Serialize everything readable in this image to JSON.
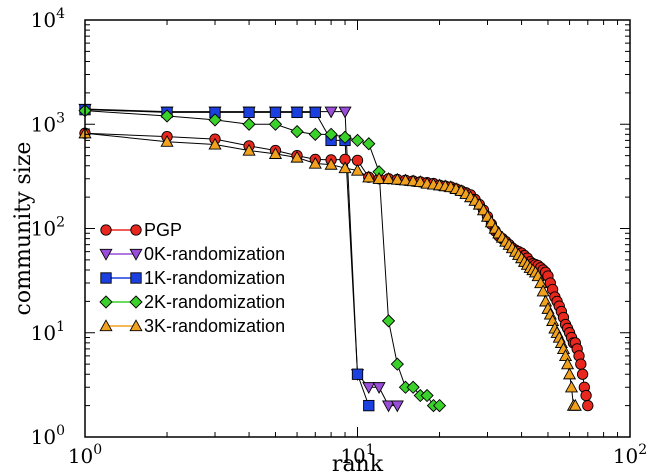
{
  "chart_data": {
    "type": "scatter",
    "xlabel": "rank",
    "ylabel": "community size",
    "xscale": "log",
    "yscale": "log",
    "xlim": [
      1,
      100
    ],
    "ylim": [
      1,
      10000
    ],
    "x_ticks": [
      {
        "value": 1,
        "base": "10",
        "exp": "0"
      },
      {
        "value": 10,
        "base": "10",
        "exp": "1"
      },
      {
        "value": 100,
        "base": "10",
        "exp": "2"
      }
    ],
    "y_ticks": [
      {
        "value": 1,
        "base": "10",
        "exp": "0"
      },
      {
        "value": 10,
        "base": "10",
        "exp": "1"
      },
      {
        "value": 100,
        "base": "10",
        "exp": "2"
      },
      {
        "value": 1000,
        "base": "10",
        "exp": "3"
      },
      {
        "value": 10000,
        "base": "10",
        "exp": "4"
      }
    ],
    "grid": false,
    "legend_position": "left",
    "series": [
      {
        "name": "PGP",
        "marker": "circle",
        "color": "#e8281e",
        "points": [
          [
            1,
            820
          ],
          [
            2,
            760
          ],
          [
            3,
            720
          ],
          [
            4,
            620
          ],
          [
            5,
            560
          ],
          [
            6,
            500
          ],
          [
            7,
            460
          ],
          [
            8,
            455
          ],
          [
            9,
            460
          ],
          [
            10,
            450
          ],
          [
            11,
            310
          ],
          [
            12,
            300
          ],
          [
            13,
            300
          ],
          [
            14,
            295
          ],
          [
            15,
            290
          ],
          [
            16,
            285
          ],
          [
            17,
            280
          ],
          [
            18,
            275
          ],
          [
            19,
            270
          ],
          [
            20,
            260
          ],
          [
            21,
            255
          ],
          [
            22,
            250
          ],
          [
            23,
            240
          ],
          [
            24,
            230
          ],
          [
            25,
            220
          ],
          [
            26,
            210
          ],
          [
            27,
            190
          ],
          [
            28,
            170
          ],
          [
            29,
            150
          ],
          [
            30,
            130
          ],
          [
            31,
            110
          ],
          [
            32,
            95
          ],
          [
            33,
            85
          ],
          [
            34,
            80
          ],
          [
            35,
            75
          ],
          [
            36,
            70
          ],
          [
            37,
            65
          ],
          [
            38,
            62
          ],
          [
            39,
            60
          ],
          [
            40,
            58
          ],
          [
            41,
            55
          ],
          [
            42,
            52
          ],
          [
            43,
            48
          ],
          [
            44,
            46
          ],
          [
            45,
            45
          ],
          [
            46,
            44
          ],
          [
            47,
            42
          ],
          [
            48,
            40
          ],
          [
            49,
            38
          ],
          [
            50,
            35
          ],
          [
            51,
            30
          ],
          [
            52,
            26
          ],
          [
            53,
            22
          ],
          [
            54,
            20
          ],
          [
            55,
            18
          ],
          [
            56,
            16
          ],
          [
            57,
            14
          ],
          [
            58,
            12
          ],
          [
            59,
            11
          ],
          [
            60,
            10
          ],
          [
            61,
            9
          ],
          [
            62,
            8
          ],
          [
            63,
            8
          ],
          [
            64,
            7
          ],
          [
            65,
            6
          ],
          [
            66,
            5
          ],
          [
            67,
            4
          ],
          [
            68,
            3
          ],
          [
            69,
            2.5
          ],
          [
            70,
            2
          ]
        ]
      },
      {
        "name": "0K-randomization",
        "marker": "triangle-down",
        "color": "#9a4dd8",
        "points": [
          [
            1,
            1400
          ],
          [
            2,
            1320
          ],
          [
            3,
            1320
          ],
          [
            4,
            1320
          ],
          [
            5,
            1320
          ],
          [
            6,
            1320
          ],
          [
            7,
            1320
          ],
          [
            8,
            1320
          ],
          [
            9,
            1320
          ],
          [
            10,
            4
          ],
          [
            11,
            3
          ],
          [
            12,
            3
          ],
          [
            13,
            2
          ],
          [
            14,
            2
          ]
        ]
      },
      {
        "name": "1K-randomization",
        "marker": "square",
        "color": "#1c3fe0",
        "points": [
          [
            1,
            1380
          ],
          [
            2,
            1300
          ],
          [
            3,
            1300
          ],
          [
            4,
            1300
          ],
          [
            5,
            1300
          ],
          [
            6,
            1300
          ],
          [
            7,
            1300
          ],
          [
            8,
            700
          ],
          [
            9,
            700
          ],
          [
            10,
            4
          ],
          [
            11,
            2
          ]
        ]
      },
      {
        "name": "2K-randomization",
        "marker": "diamond",
        "color": "#3bd12b",
        "points": [
          [
            1,
            1350
          ],
          [
            2,
            1200
          ],
          [
            3,
            1100
          ],
          [
            4,
            1000
          ],
          [
            5,
            1000
          ],
          [
            6,
            850
          ],
          [
            7,
            800
          ],
          [
            8,
            800
          ],
          [
            9,
            750
          ],
          [
            10,
            700
          ],
          [
            11,
            650
          ],
          [
            12,
            350
          ],
          [
            13,
            13
          ],
          [
            14,
            5
          ],
          [
            15,
            3
          ],
          [
            16,
            3
          ],
          [
            17,
            2.5
          ],
          [
            18,
            2.5
          ],
          [
            19,
            2
          ],
          [
            20,
            2
          ]
        ]
      },
      {
        "name": "3K-randomization",
        "marker": "triangle-up",
        "color": "#f0a11e",
        "points": [
          [
            1,
            820
          ],
          [
            2,
            680
          ],
          [
            3,
            640
          ],
          [
            4,
            560
          ],
          [
            5,
            520
          ],
          [
            6,
            480
          ],
          [
            7,
            420
          ],
          [
            8,
            410
          ],
          [
            9,
            380
          ],
          [
            10,
            360
          ],
          [
            11,
            310
          ],
          [
            12,
            300
          ],
          [
            13,
            300
          ],
          [
            14,
            295
          ],
          [
            15,
            290
          ],
          [
            16,
            285
          ],
          [
            17,
            280
          ],
          [
            18,
            270
          ],
          [
            19,
            265
          ],
          [
            20,
            260
          ],
          [
            21,
            255
          ],
          [
            22,
            250
          ],
          [
            23,
            240
          ],
          [
            24,
            230
          ],
          [
            25,
            215
          ],
          [
            26,
            200
          ],
          [
            27,
            185
          ],
          [
            28,
            170
          ],
          [
            29,
            150
          ],
          [
            30,
            130
          ],
          [
            31,
            115
          ],
          [
            32,
            100
          ],
          [
            33,
            90
          ],
          [
            34,
            82
          ],
          [
            35,
            75
          ],
          [
            36,
            70
          ],
          [
            37,
            65
          ],
          [
            38,
            60
          ],
          [
            39,
            56
          ],
          [
            40,
            52
          ],
          [
            41,
            48
          ],
          [
            42,
            45
          ],
          [
            43,
            42
          ],
          [
            44,
            40
          ],
          [
            45,
            38
          ],
          [
            46,
            35
          ],
          [
            47,
            30
          ],
          [
            48,
            25
          ],
          [
            49,
            20
          ],
          [
            50,
            17
          ],
          [
            51,
            15
          ],
          [
            52,
            13
          ],
          [
            53,
            11
          ],
          [
            54,
            10
          ],
          [
            55,
            9
          ],
          [
            56,
            8
          ],
          [
            57,
            7
          ],
          [
            58,
            6
          ],
          [
            59,
            5
          ],
          [
            60,
            4
          ],
          [
            61,
            3
          ],
          [
            62,
            2
          ],
          [
            63,
            2
          ]
        ]
      }
    ]
  }
}
